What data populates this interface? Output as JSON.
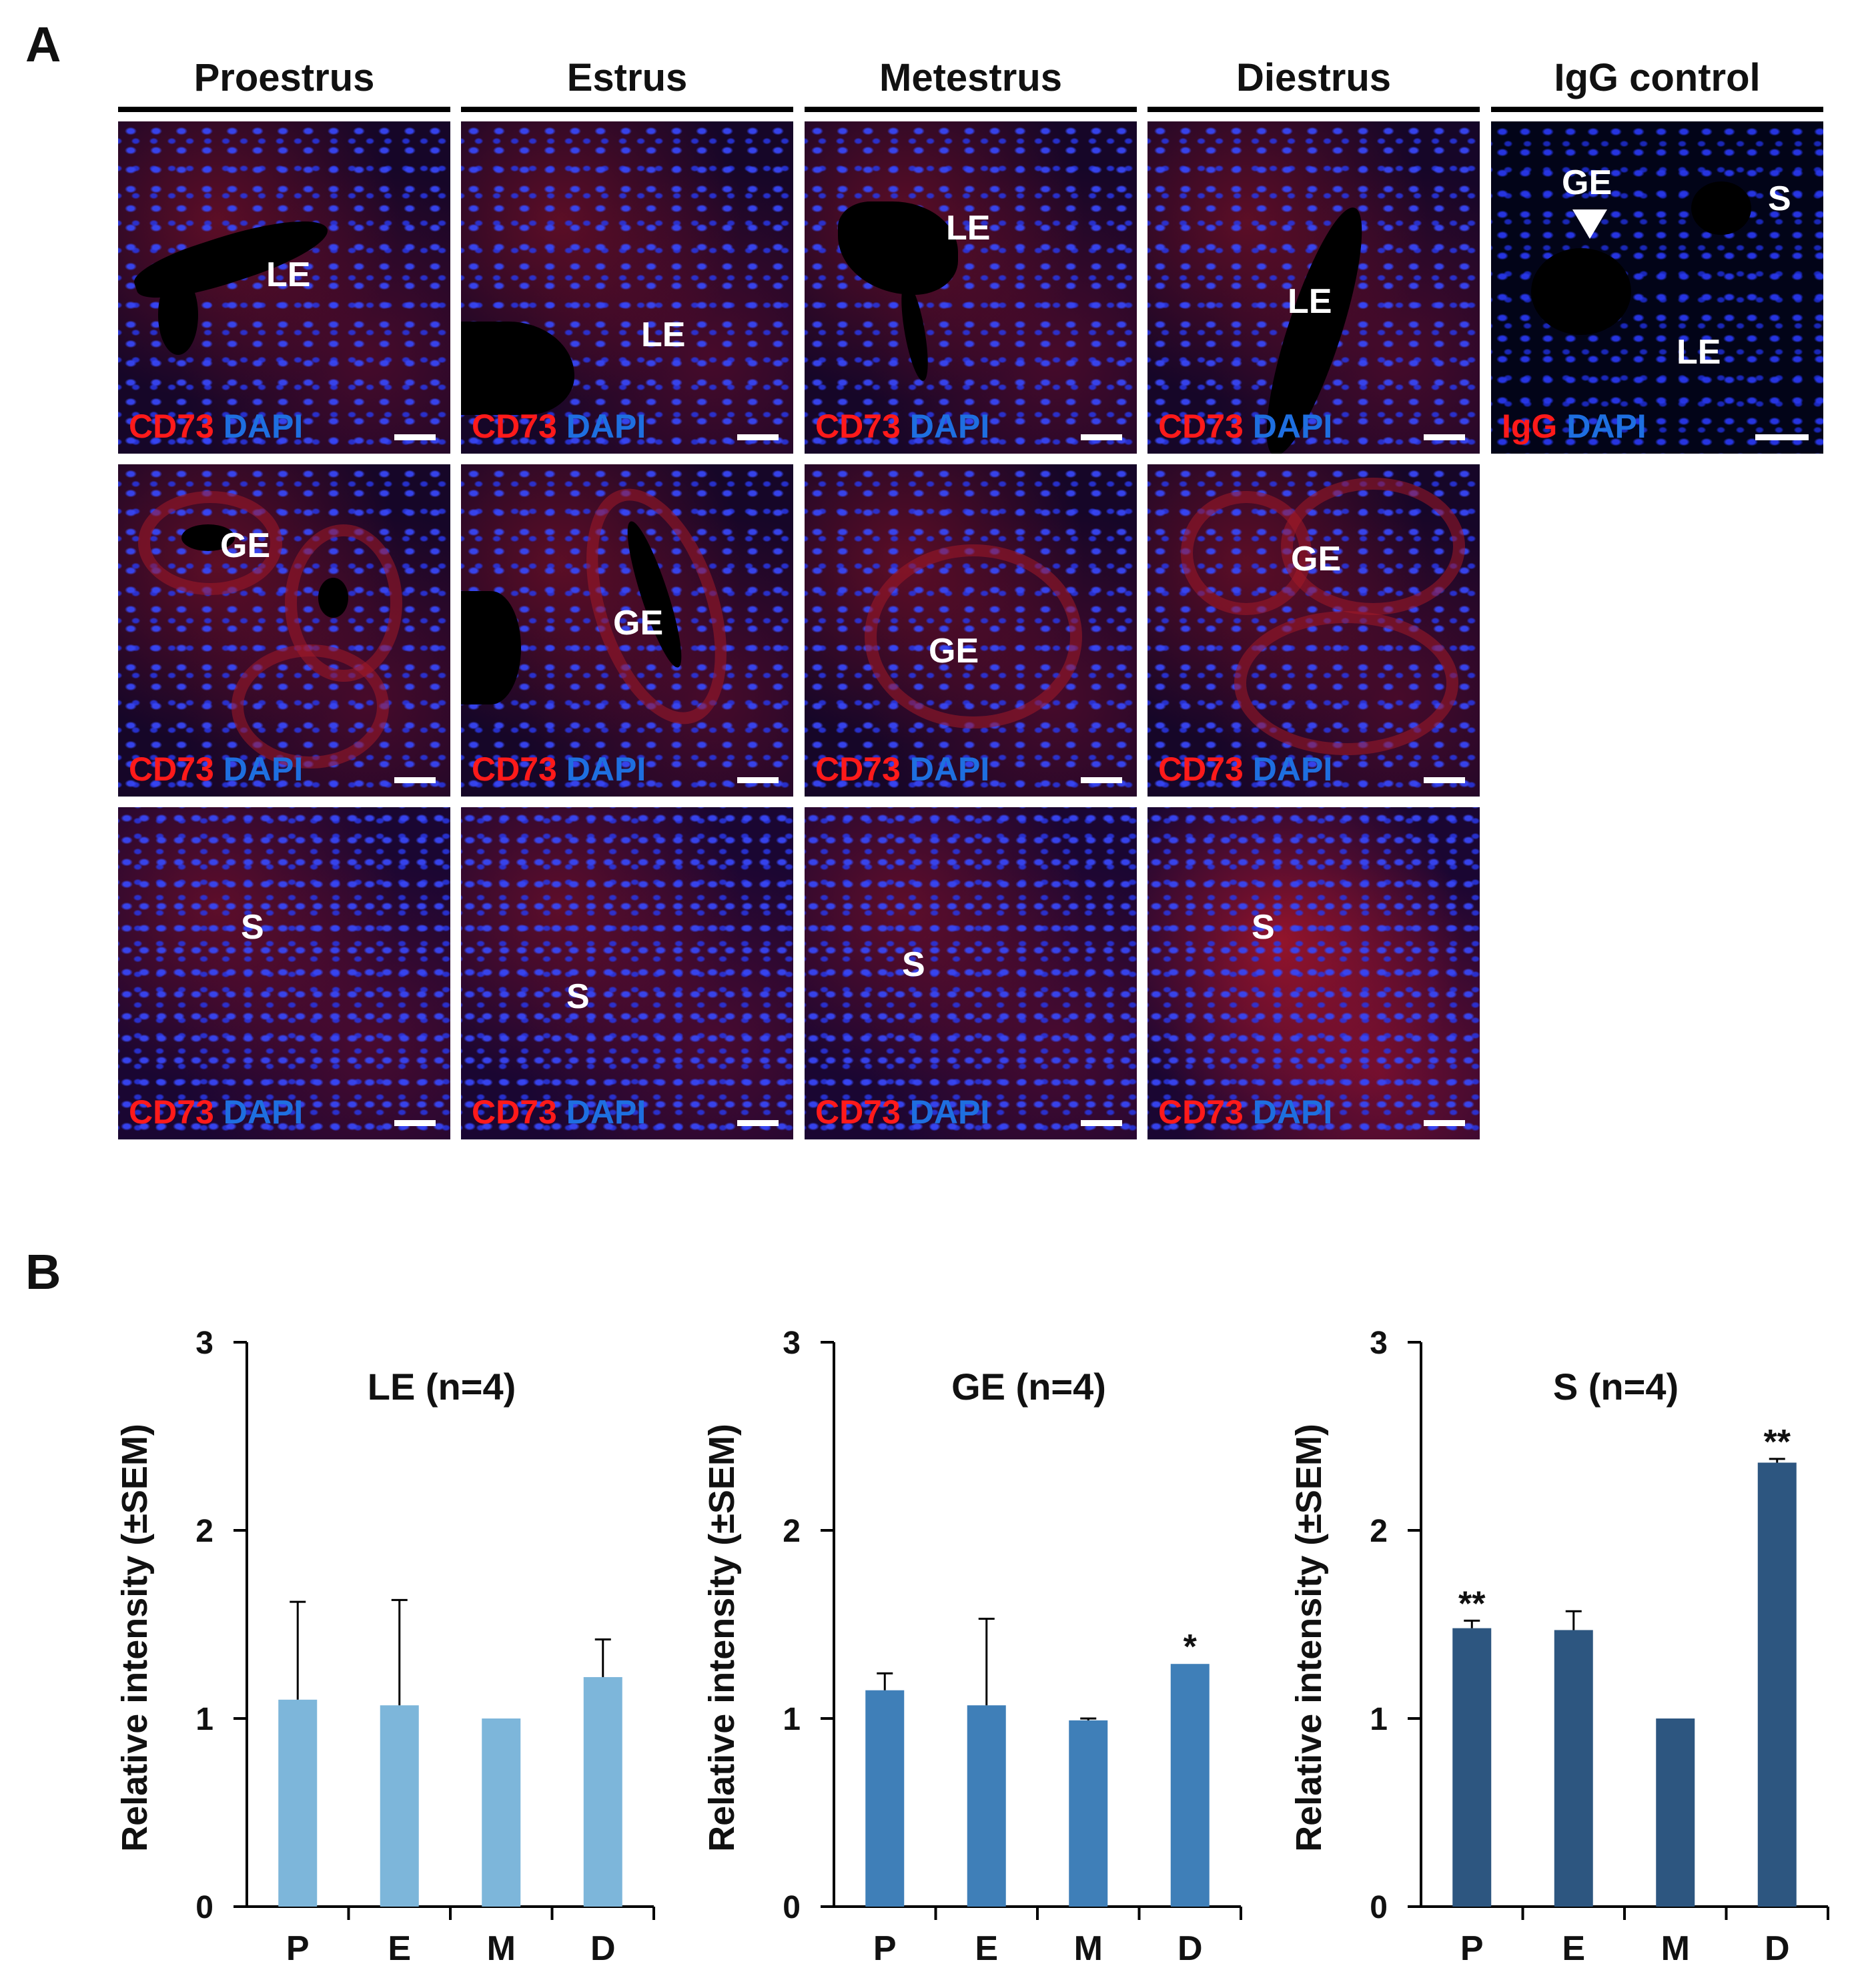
{
  "panels": {
    "a": "A",
    "b": "B"
  },
  "columns": [
    "Proestrus",
    "Estrus",
    "Metestrus",
    "Diestrus",
    "IgG control"
  ],
  "stains": {
    "cd73": "CD73",
    "dapi": "DAPI",
    "igg": "IgG"
  },
  "regions": {
    "proestrus": [
      "LE",
      "GE",
      "S"
    ],
    "estrus": [
      "LE",
      "GE",
      "S"
    ],
    "metestrus": [
      "LE",
      "GE",
      "S"
    ],
    "diestrus": [
      "LE",
      "GE",
      "S"
    ],
    "igg": [
      "GE",
      "S",
      "LE"
    ]
  },
  "colors": {
    "le_bar": "#7db6da",
    "ge_bar": "#3f7fb8",
    "s_bar": "#2d5680",
    "cd73_label": "#ff1a1a",
    "dapi_label": "#1e6fe0"
  },
  "chart_data": [
    {
      "type": "bar",
      "title": "LE (n=4)",
      "ylabel": "Relative intensity (±SEM)",
      "categories": [
        "P",
        "E",
        "M",
        "D"
      ],
      "values": [
        1.1,
        1.07,
        1.0,
        1.22
      ],
      "errors": [
        0.52,
        0.56,
        0.0,
        0.2
      ],
      "significance": [
        "",
        "",
        "",
        ""
      ],
      "ylim": [
        0,
        3
      ],
      "yticks": [
        "0",
        "1",
        "2",
        "3"
      ]
    },
    {
      "type": "bar",
      "title": "GE (n=4)",
      "ylabel": "Relative intensity (±SEM)",
      "categories": [
        "P",
        "E",
        "M",
        "D"
      ],
      "values": [
        1.15,
        1.07,
        0.99,
        1.29
      ],
      "errors": [
        0.09,
        0.46,
        0.01,
        0.0
      ],
      "significance": [
        "",
        "",
        "",
        "*"
      ],
      "ylim": [
        0,
        3
      ],
      "yticks": [
        "0",
        "1",
        "2",
        "3"
      ]
    },
    {
      "type": "bar",
      "title": "S (n=4)",
      "ylabel": "Relative intensity (±SEM)",
      "categories": [
        "P",
        "E",
        "M",
        "D"
      ],
      "values": [
        1.48,
        1.47,
        1.0,
        2.36
      ],
      "errors": [
        0.04,
        0.1,
        0.0,
        0.02
      ],
      "significance": [
        "**",
        "",
        "",
        "**"
      ],
      "ylim": [
        0,
        3
      ],
      "yticks": [
        "0",
        "1",
        "2",
        "3"
      ]
    }
  ]
}
